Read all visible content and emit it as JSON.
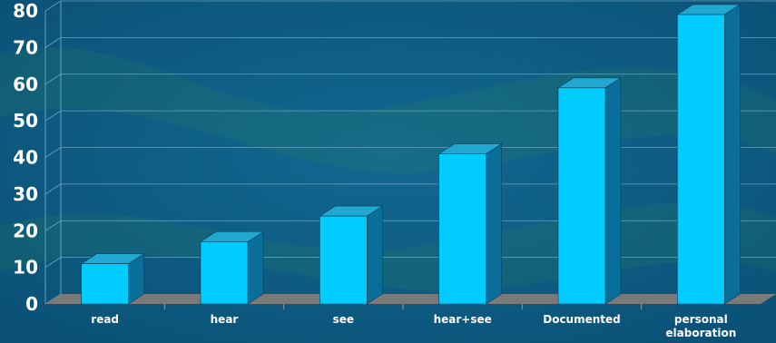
{
  "chart_data": {
    "type": "bar",
    "title": "",
    "xlabel": "",
    "ylabel": "",
    "categories": [
      [
        "read"
      ],
      [
        "hear"
      ],
      [
        "see"
      ],
      [
        "hear+see"
      ],
      [
        "Documented"
      ],
      [
        "personal",
        "elaboration"
      ]
    ],
    "values": [
      11,
      17,
      24,
      41,
      59,
      79
    ],
    "ylim": [
      0,
      80
    ],
    "yticks": [
      0,
      10,
      20,
      30,
      40,
      50,
      60,
      70,
      80
    ],
    "grid": true,
    "style": "3d-column",
    "colors": {
      "bar_front": "#00ccff",
      "bar_top": "#22a8d0",
      "bar_side": "#0a6e9a",
      "floor": "#7a7a7a",
      "gridline": "#7fb3cf",
      "text": "#ffffff"
    }
  }
}
